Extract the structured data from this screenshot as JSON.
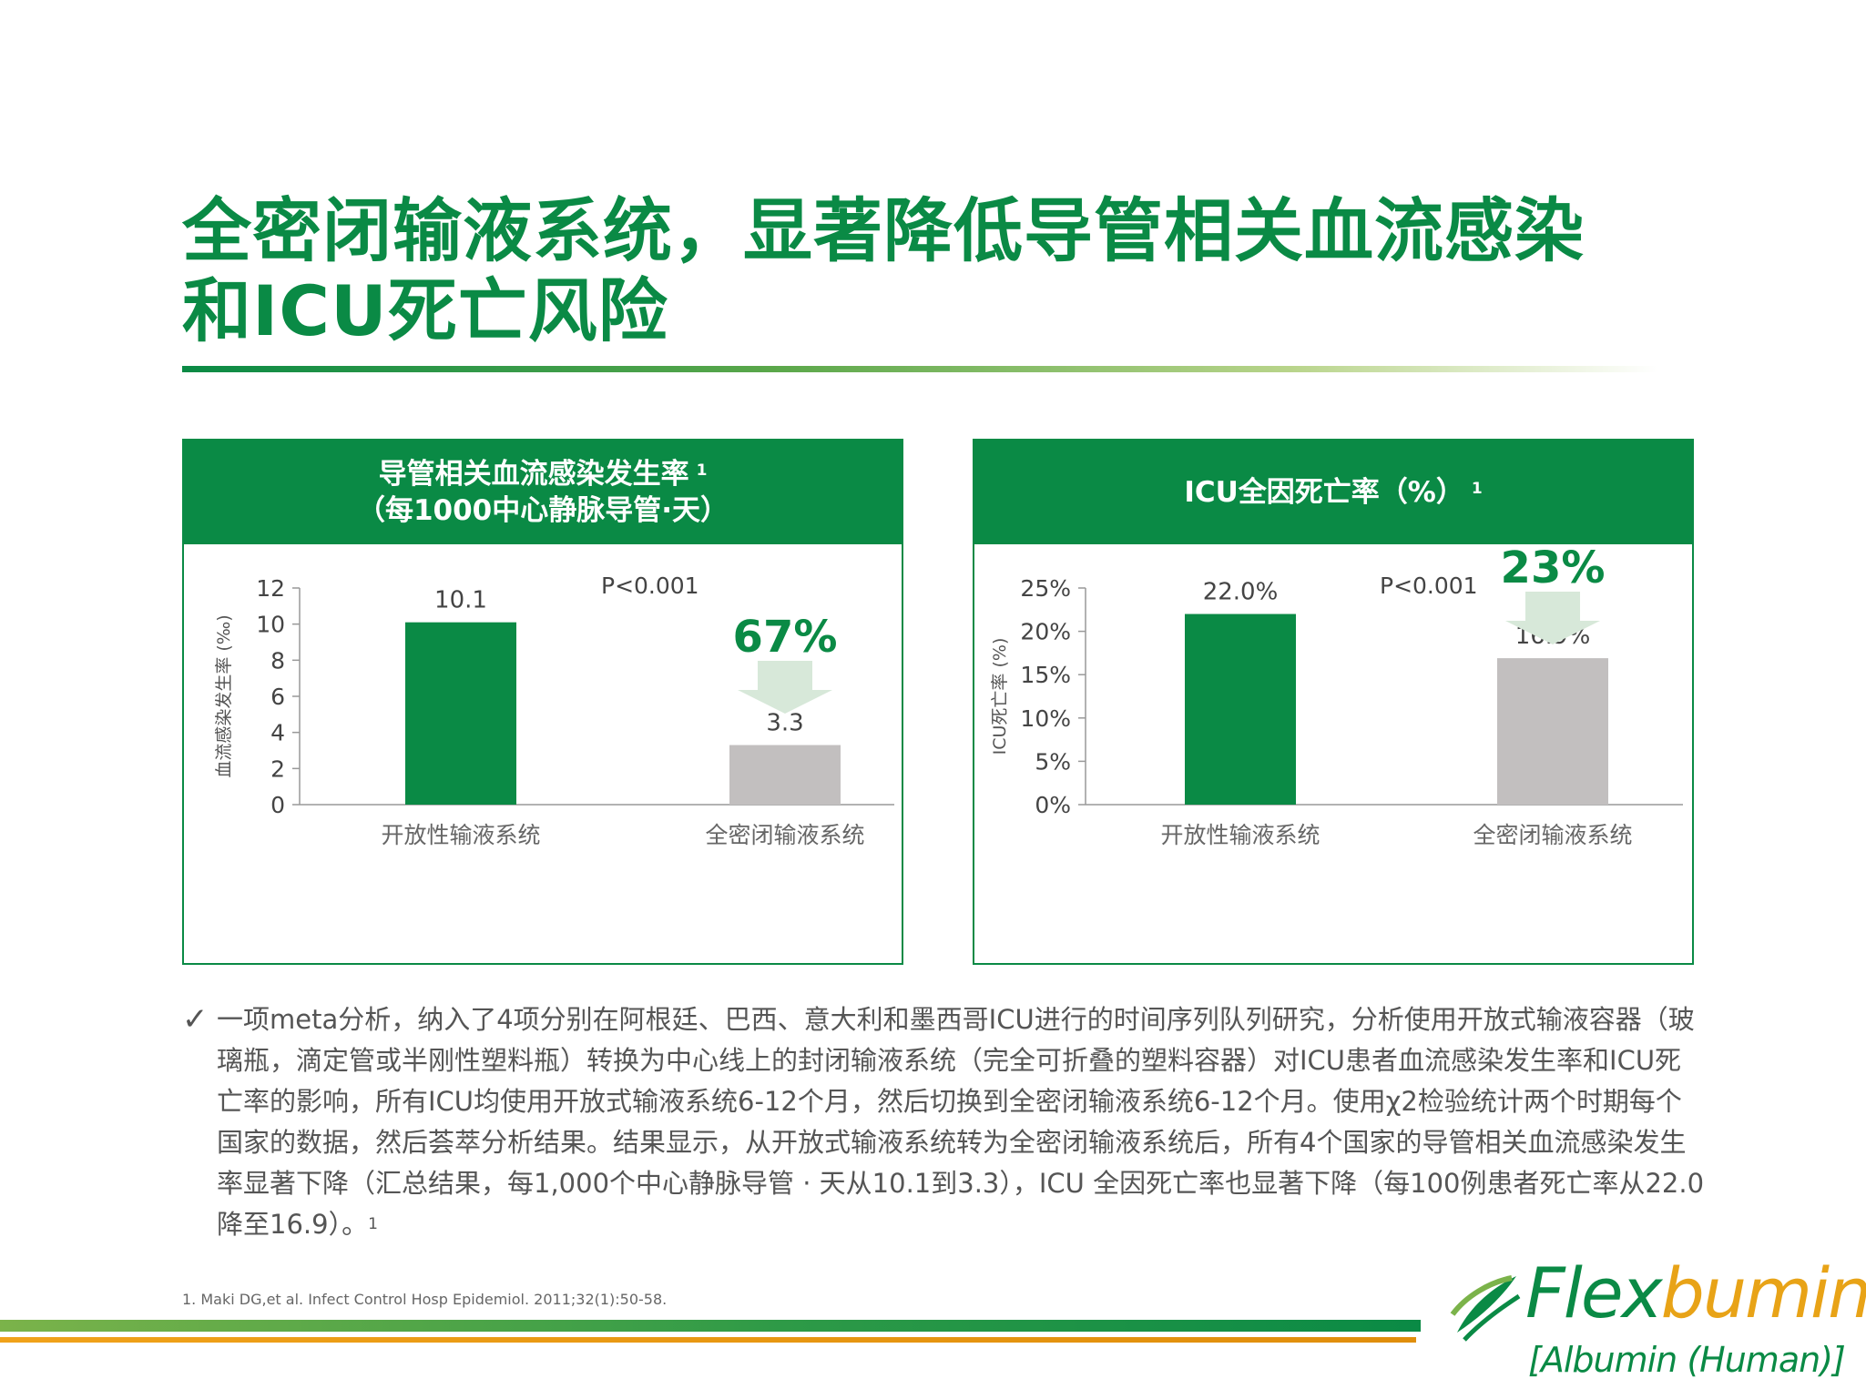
{
  "title_line1": "全密闭输液系统，显著降低导管相关血流感染",
  "title_line2": "和ICU死亡风险",
  "panels": [
    {
      "header_line1": "导管相关血流感染发生率",
      "header_line2": "（每1000中心静脉导管·天）",
      "header_sup": "1"
    },
    {
      "header_line1": "ICU全因死亡率（%）",
      "header_line2": "",
      "header_sup": "1"
    }
  ],
  "chart_data": [
    {
      "type": "bar",
      "categories": [
        "开放性输液系统",
        "全密闭输液系统"
      ],
      "values": [
        10.1,
        3.3
      ],
      "value_labels": [
        "10.1",
        "3.3"
      ],
      "ylabel": "血流感染发生率 (‰)",
      "ylim": [
        0,
        12
      ],
      "yticks": [
        0,
        2,
        4,
        6,
        8,
        10,
        12
      ],
      "ytick_labels": [
        "0",
        "2",
        "4",
        "6",
        "8",
        "10",
        "12"
      ],
      "p_value": "P<0.001",
      "reduction": "67%",
      "colors": [
        "#0a8a45",
        "#c2bfbf"
      ],
      "arrow_color": "#d7e8d9",
      "grid": false
    },
    {
      "type": "bar",
      "categories": [
        "开放性输液系统",
        "全密闭输液系统"
      ],
      "values": [
        22.0,
        16.9
      ],
      "value_labels": [
        "22.0%",
        "16.9%"
      ],
      "ylabel": "ICU死亡率 (%)",
      "ylim": [
        0,
        25
      ],
      "yticks": [
        0,
        5,
        10,
        15,
        20,
        25
      ],
      "ytick_labels": [
        "0%",
        "5%",
        "10%",
        "15%",
        "20%",
        "25%"
      ],
      "p_value": "P<0.001",
      "reduction": "23%",
      "colors": [
        "#0a8a45",
        "#c2bfbf"
      ],
      "arrow_color": "#d7e8d9",
      "grid": false
    }
  ],
  "bullet": {
    "check": "✓",
    "lines": [
      "一项meta分析，纳入了4项分别在阿根廷、巴西、意大利和墨西哥ICU进行的时间序列队列研究，分析使用开放式输液容器（玻",
      "璃瓶，滴定管或半刚性塑料瓶）转换为中心线上的封闭输液系统（完全可折叠的塑料容器）对ICU患者血流感染发生率和ICU死",
      "亡率的影响，所有ICU均使用开放式输液系统6-12个月，然后切换到全密闭输液系统6-12个月。使用χ2检验统计两个时期每个",
      "国家的数据，然后荟萃分析结果。结果显示，从开放式输液系统转为全密闭输液系统后，所有4个国家的导管相关血流感染发生",
      "率显著下降（汇总结果，每1,000个中心静脉导管 · 天从10.1到3.3），ICU 全因死亡率也显著下降（每100例患者死亡率从22.0",
      "降至16.9）。"
    ],
    "sup": "1"
  },
  "reference": "1. Maki DG,et al. Infect Control Hosp Epidemiol. 2011;32(1):50-58.",
  "logo": {
    "word_main": "Flex",
    "word_tail": "bumin",
    "subtitle": "[Albumin (Human)]"
  }
}
